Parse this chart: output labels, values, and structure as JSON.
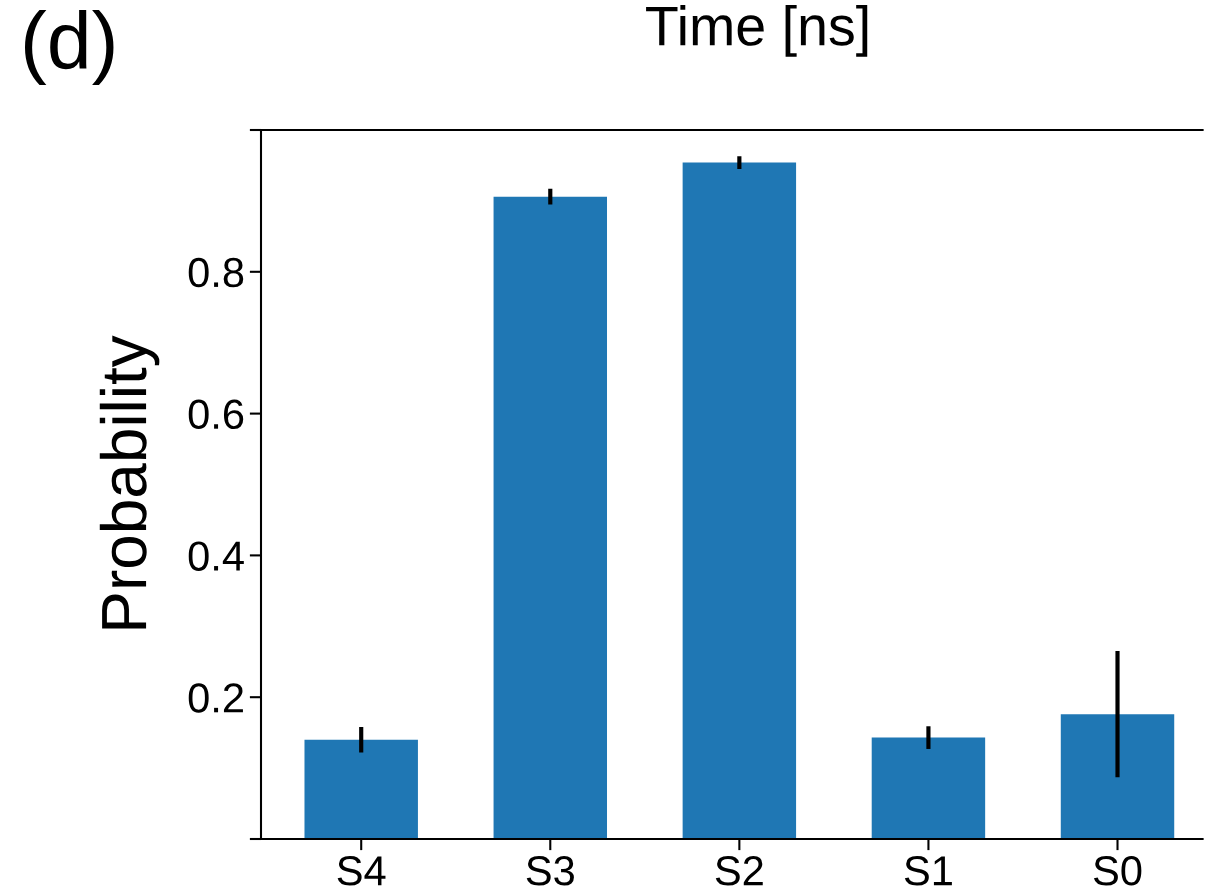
{
  "chart_data": {
    "type": "bar",
    "ylabel": "Probability",
    "annotations": [
      "(d)",
      "Time [ns]"
    ],
    "categories": [
      "S4",
      "S3",
      "S2",
      "S1",
      "S0"
    ],
    "values": [
      0.14,
      0.906,
      0.954,
      0.143,
      0.176
    ],
    "errors": [
      0.018,
      0.011,
      0.009,
      0.016,
      0.089
    ],
    "color": "#1f77b4",
    "ylim": [
      0,
      1
    ],
    "yticks": [
      {
        "value": 0,
        "label": null
      },
      0.2,
      0.4,
      0.6,
      0.8,
      {
        "value": 1,
        "label": null
      }
    ],
    "grid": false,
    "legend": false
  }
}
